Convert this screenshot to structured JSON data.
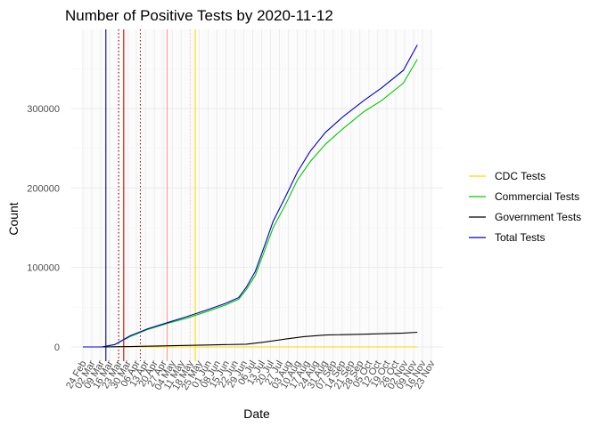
{
  "chart_data": {
    "type": "line",
    "title": "Number of Positive Tests by  2020-11-12",
    "xlabel": "Date",
    "ylabel": "Count",
    "x_range": [
      "2020-02-24",
      "2020-11-23"
    ],
    "ylim": [
      0,
      380000
    ],
    "y_ticks": [
      0,
      100000,
      200000,
      300000
    ],
    "y_tick_labels": [
      "0",
      "100000",
      "200000",
      "300000"
    ],
    "x_tick_labels": [
      "24 Feb",
      "02 Mar",
      "09 Mar",
      "16 Mar",
      "23 Mar",
      "30 Mar",
      "06 Apr",
      "13 Apr",
      "20 Apr",
      "27 Apr",
      "04 May",
      "11 May",
      "18 May",
      "25 May",
      "01 Jun",
      "08 Jun",
      "15 Jun",
      "22 Jun",
      "29 Jun",
      "06 Jul",
      "13 Jul",
      "20 Jul",
      "27 Jul",
      "03 Aug",
      "10 Aug",
      "17 Aug",
      "24 Aug",
      "31 Aug",
      "07 Sep",
      "14 Sep",
      "21 Sep",
      "28 Sep",
      "05 Oct",
      "12 Oct",
      "19 Oct",
      "26 Oct",
      "02 Nov",
      "09 Nov",
      "16 Nov",
      "23 Nov"
    ],
    "grid": true,
    "legend_position": "right",
    "series": [
      {
        "name": "CDC Tests",
        "color": "#FFD700",
        "points": [
          [
            "2020-02-24",
            0
          ],
          [
            "2020-11-12",
            0
          ]
        ]
      },
      {
        "name": "Commercial Tests",
        "color": "#00CC00",
        "points": [
          [
            "2020-03-10",
            0
          ],
          [
            "2020-03-20",
            3000
          ],
          [
            "2020-04-01",
            13000
          ],
          [
            "2020-04-15",
            22000
          ],
          [
            "2020-05-01",
            30000
          ],
          [
            "2020-05-15",
            36000
          ],
          [
            "2020-06-01",
            45000
          ],
          [
            "2020-06-15",
            53000
          ],
          [
            "2020-06-25",
            60000
          ],
          [
            "2020-07-01",
            72000
          ],
          [
            "2020-07-08",
            90000
          ],
          [
            "2020-07-15",
            120000
          ],
          [
            "2020-07-22",
            150000
          ],
          [
            "2020-08-01",
            180000
          ],
          [
            "2020-08-10",
            210000
          ],
          [
            "2020-08-20",
            233000
          ],
          [
            "2020-09-01",
            255000
          ],
          [
            "2020-09-15",
            275000
          ],
          [
            "2020-10-01",
            296000
          ],
          [
            "2020-10-15",
            310000
          ],
          [
            "2020-11-01",
            332000
          ],
          [
            "2020-11-12",
            362000
          ]
        ]
      },
      {
        "name": "Government Tests",
        "color": "#000000",
        "points": [
          [
            "2020-03-10",
            0
          ],
          [
            "2020-04-01",
            500
          ],
          [
            "2020-05-01",
            1500
          ],
          [
            "2020-06-01",
            2500
          ],
          [
            "2020-07-01",
            3500
          ],
          [
            "2020-07-15",
            6000
          ],
          [
            "2020-08-01",
            10000
          ],
          [
            "2020-08-15",
            13000
          ],
          [
            "2020-09-01",
            15000
          ],
          [
            "2020-10-01",
            16000
          ],
          [
            "2020-11-01",
            17500
          ],
          [
            "2020-11-12",
            18500
          ]
        ]
      },
      {
        "name": "Total Tests",
        "color": "#0000CC",
        "points": [
          [
            "2020-02-24",
            0
          ],
          [
            "2020-03-10",
            0
          ],
          [
            "2020-03-20",
            3000
          ],
          [
            "2020-04-01",
            14000
          ],
          [
            "2020-04-15",
            23000
          ],
          [
            "2020-05-01",
            31000
          ],
          [
            "2020-05-15",
            38000
          ],
          [
            "2020-06-01",
            47000
          ],
          [
            "2020-06-15",
            55000
          ],
          [
            "2020-06-25",
            62000
          ],
          [
            "2020-07-01",
            75000
          ],
          [
            "2020-07-08",
            95000
          ],
          [
            "2020-07-15",
            126000
          ],
          [
            "2020-07-22",
            158000
          ],
          [
            "2020-08-01",
            190000
          ],
          [
            "2020-08-10",
            220000
          ],
          [
            "2020-08-20",
            246000
          ],
          [
            "2020-09-01",
            270000
          ],
          [
            "2020-09-15",
            290000
          ],
          [
            "2020-10-01",
            310000
          ],
          [
            "2020-10-15",
            326000
          ],
          [
            "2020-11-01",
            348000
          ],
          [
            "2020-11-12",
            380000
          ]
        ]
      }
    ],
    "vlines": [
      {
        "date": "2020-03-13",
        "color": "#00008B",
        "style": "solid"
      },
      {
        "date": "2020-03-23",
        "color": "#8B0000",
        "style": "dotted"
      },
      {
        "date": "2020-03-27",
        "color": "#CC0000",
        "style": "solid"
      },
      {
        "date": "2020-04-09",
        "color": "#CC0000",
        "style": "dotted"
      },
      {
        "date": "2020-04-30",
        "color": "#FF9999",
        "style": "solid"
      },
      {
        "date": "2020-05-18",
        "color": "#FFCCCC",
        "style": "dotted"
      },
      {
        "date": "2020-05-22",
        "color": "#FFD700",
        "style": "solid"
      }
    ]
  }
}
